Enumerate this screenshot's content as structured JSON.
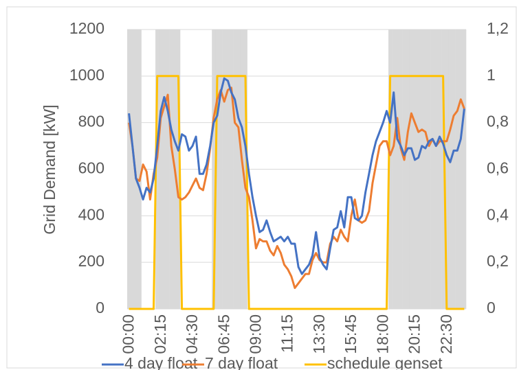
{
  "chart_data": {
    "type": "line",
    "y_label": "Grid Demand  [kW]",
    "categories": [
      "00:00",
      null,
      null,
      null,
      null,
      null,
      null,
      null,
      null,
      "02:15",
      null,
      null,
      null,
      null,
      null,
      null,
      null,
      null,
      "04:30",
      null,
      null,
      null,
      null,
      null,
      null,
      null,
      null,
      "06:45",
      null,
      null,
      null,
      null,
      null,
      null,
      null,
      null,
      "09:00",
      null,
      null,
      null,
      null,
      null,
      null,
      null,
      null,
      "11:15",
      null,
      null,
      null,
      null,
      null,
      null,
      null,
      null,
      "13:30",
      null,
      null,
      null,
      null,
      null,
      null,
      null,
      null,
      "15:45",
      null,
      null,
      null,
      null,
      null,
      null,
      null,
      null,
      "18:00",
      null,
      null,
      null,
      null,
      null,
      null,
      null,
      null,
      "20:15",
      null,
      null,
      null,
      null,
      null,
      null,
      null,
      null,
      "22:30",
      null,
      null,
      null,
      null,
      null
    ],
    "series": [
      {
        "name": "4 day float",
        "color": "#4472c4",
        "values": [
          840,
          700,
          560,
          520,
          470,
          520,
          500,
          560,
          700,
          850,
          910,
          850,
          770,
          720,
          680,
          750,
          740,
          680,
          700,
          740,
          580,
          580,
          620,
          700,
          800,
          830,
          930,
          990,
          980,
          930,
          900,
          820,
          780,
          700,
          580,
          480,
          400,
          330,
          340,
          380,
          330,
          290,
          300,
          310,
          290,
          310,
          280,
          280,
          180,
          150,
          170,
          190,
          230,
          330,
          220,
          190,
          170,
          260,
          340,
          350,
          420,
          350,
          480,
          480,
          390,
          380,
          400,
          500,
          580,
          660,
          720,
          760,
          800,
          850,
          800,
          930,
          730,
          700,
          660,
          690,
          690,
          640,
          650,
          700,
          690,
          720,
          730,
          700,
          740,
          710,
          660,
          630,
          680,
          680,
          730,
          860
        ]
      },
      {
        "name": "7 day float",
        "color": "#ed7d31",
        "values": [
          800,
          700,
          560,
          550,
          620,
          590,
          470,
          580,
          650,
          820,
          870,
          920,
          700,
          600,
          480,
          470,
          480,
          500,
          530,
          560,
          520,
          510,
          580,
          690,
          820,
          900,
          940,
          890,
          940,
          950,
          800,
          780,
          640,
          520,
          480,
          380,
          260,
          300,
          290,
          290,
          250,
          230,
          270,
          240,
          190,
          170,
          140,
          90,
          110,
          130,
          150,
          150,
          210,
          240,
          210,
          200,
          200,
          280,
          310,
          290,
          340,
          310,
          290,
          400,
          470,
          380,
          370,
          380,
          420,
          540,
          620,
          700,
          720,
          720,
          660,
          700,
          820,
          690,
          640,
          760,
          840,
          800,
          760,
          770,
          760,
          700,
          730,
          700,
          720,
          720,
          720,
          770,
          830,
          850,
          900,
          860
        ]
      },
      {
        "name": "schedule genset",
        "color": "#ffc000",
        "axis": "y2",
        "values": [
          0,
          0,
          0,
          0,
          0,
          0,
          0,
          0,
          1,
          1,
          1,
          1,
          1,
          1,
          1,
          0,
          0,
          0,
          0,
          0,
          0,
          0,
          0,
          0,
          0,
          1,
          1,
          1,
          1,
          1,
          1,
          1,
          1,
          1,
          0,
          0,
          0,
          0,
          0,
          0,
          0,
          0,
          0,
          0,
          0,
          0,
          0,
          0,
          0,
          0,
          0,
          0,
          0,
          0,
          0,
          0,
          0,
          0,
          0,
          0,
          0,
          0,
          0,
          0,
          0,
          0,
          0,
          0,
          0,
          0,
          0,
          0,
          0,
          0,
          1,
          1,
          1,
          1,
          1,
          1,
          1,
          1,
          1,
          1,
          1,
          1,
          1,
          1,
          1,
          1,
          0,
          0,
          0,
          0,
          0,
          0
        ]
      }
    ],
    "shading": {
      "color": "#d9d9d9",
      "axis": "y2",
      "values": [
        1.2,
        1.2,
        1.2,
        1.2,
        0,
        0,
        0,
        0,
        1.2,
        1.2,
        1.2,
        1.2,
        1.2,
        1.2,
        1.2,
        0,
        0,
        0,
        0,
        0,
        0,
        0,
        0,
        0,
        1.2,
        1.2,
        1.2,
        1.2,
        1.2,
        1.2,
        1.2,
        1.2,
        1.2,
        1.2,
        0,
        0,
        0,
        0,
        0,
        0,
        0,
        0,
        0,
        0,
        0,
        0,
        0,
        0,
        0,
        0,
        0,
        0,
        0,
        0,
        0,
        0,
        0,
        0,
        0,
        0,
        0,
        0,
        0,
        0,
        0,
        0,
        0,
        0,
        0,
        0,
        0,
        0,
        0,
        0,
        1.2,
        1.2,
        1.2,
        1.2,
        1.2,
        1.2,
        1.2,
        1.2,
        1.2,
        1.2,
        1.2,
        1.2,
        1.2,
        1.2,
        1.2,
        1.2,
        1.2,
        1.2,
        1.2,
        1.2,
        1.2,
        1.2
      ]
    },
    "ylim": [
      0,
      1200
    ],
    "yticks": [
      0,
      200,
      400,
      600,
      800,
      1000,
      1200
    ],
    "y2lim": [
      0,
      1.2
    ],
    "y2ticks": [
      0,
      {
        "value": 0.2,
        "label": "0,2"
      },
      {
        "value": 0.4,
        "label": "0,4"
      },
      {
        "value": 0.6,
        "label": "0,6"
      },
      {
        "value": 0.8,
        "label": "0,8"
      },
      1,
      {
        "value": 1.2,
        "label": "1,2"
      }
    ],
    "grid": true
  }
}
